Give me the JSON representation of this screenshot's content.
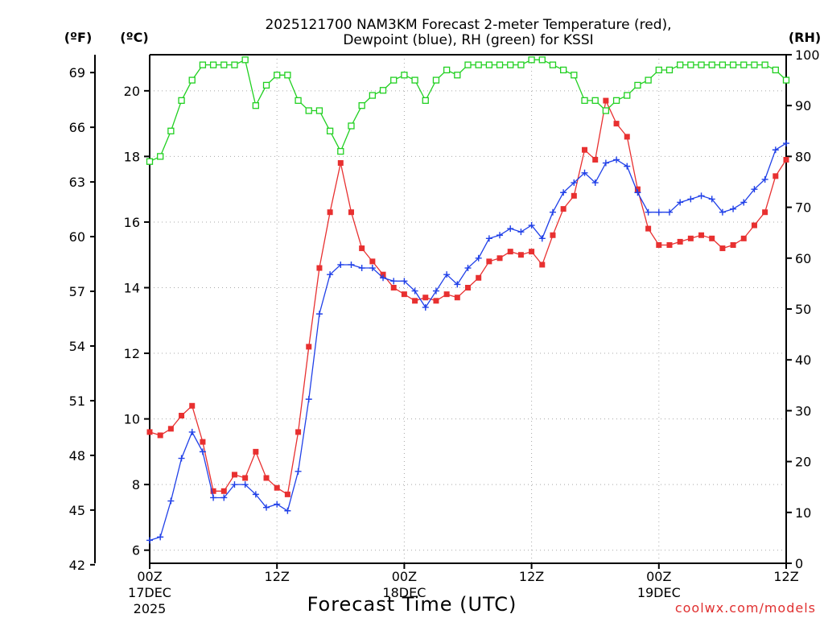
{
  "chart_data": {
    "type": "line",
    "title_line1": "2025121700 NAM3KM Forecast 2-meter Temperature (red),",
    "title_line2": "Dewpoint (blue), RH (green) for KSSI",
    "xlabel": "Forecast Time (UTC)",
    "left_axis_f_label": "(ºF)",
    "left_axis_c_label": "(ºC)",
    "right_axis_label": "(RH)",
    "credit": "coolwx.com/models",
    "x_range_hours": [
      0,
      60
    ],
    "y_celsius_range": [
      5.6,
      21.1
    ],
    "y_rh_range": [
      0,
      100
    ],
    "x_ticks": [
      {
        "hour": 0,
        "label": "00Z",
        "sub1": "17DEC",
        "sub2": "2025"
      },
      {
        "hour": 12,
        "label": "12Z",
        "sub1": "",
        "sub2": ""
      },
      {
        "hour": 24,
        "label": "00Z",
        "sub1": "18DEC",
        "sub2": ""
      },
      {
        "hour": 36,
        "label": "12Z",
        "sub1": "",
        "sub2": ""
      },
      {
        "hour": 48,
        "label": "00Z",
        "sub1": "19DEC",
        "sub2": ""
      },
      {
        "hour": 60,
        "label": "12Z",
        "sub1": "",
        "sub2": ""
      }
    ],
    "celsius_ticks": [
      "6",
      "8",
      "10",
      "12",
      "14",
      "16",
      "18",
      "20"
    ],
    "fahrenheit_ticks": [
      "42",
      "45",
      "48",
      "51",
      "54",
      "57",
      "60",
      "63",
      "66",
      "69"
    ],
    "rh_ticks": [
      "0",
      "10",
      "20",
      "30",
      "40",
      "50",
      "60",
      "70",
      "80",
      "90",
      "100"
    ],
    "hours": [
      0,
      1,
      2,
      3,
      4,
      5,
      6,
      7,
      8,
      9,
      10,
      11,
      12,
      13,
      14,
      15,
      16,
      17,
      18,
      19,
      20,
      21,
      22,
      23,
      24,
      25,
      26,
      27,
      28,
      29,
      30,
      31,
      32,
      33,
      34,
      35,
      36,
      37,
      38,
      39,
      40,
      41,
      42,
      43,
      44,
      45,
      46,
      47,
      48,
      49,
      50,
      51,
      52,
      53,
      54,
      55,
      56,
      57,
      58,
      59,
      60
    ],
    "series": [
      {
        "name": "Temperature",
        "color": "#e83030",
        "marker": "square",
        "axis": "celsius",
        "values": [
          9.6,
          9.5,
          9.7,
          10.1,
          10.4,
          9.3,
          7.8,
          7.8,
          8.3,
          8.2,
          9.0,
          8.2,
          7.9,
          7.7,
          9.6,
          12.2,
          14.6,
          16.3,
          17.8,
          16.3,
          15.2,
          14.8,
          14.4,
          14.0,
          13.8,
          13.6,
          13.7,
          13.6,
          13.8,
          13.7,
          14.0,
          14.3,
          14.8,
          14.9,
          15.1,
          15.0,
          15.1,
          14.7,
          15.6,
          16.4,
          16.8,
          18.2,
          17.9,
          19.7,
          19.0,
          18.6,
          17.0,
          15.8,
          15.3,
          15.3,
          15.4,
          15.5,
          15.6,
          15.5,
          15.2,
          15.3,
          15.5,
          15.9,
          16.3,
          17.4,
          17.9
        ]
      },
      {
        "name": "Dewpoint",
        "color": "#2040e8",
        "marker": "plus",
        "axis": "celsius",
        "values": [
          6.3,
          6.4,
          7.5,
          8.8,
          9.6,
          9.0,
          7.6,
          7.6,
          8.0,
          8.0,
          7.7,
          7.3,
          7.4,
          7.2,
          8.4,
          10.6,
          13.2,
          14.4,
          14.7,
          14.7,
          14.6,
          14.6,
          14.3,
          14.2,
          14.2,
          13.9,
          13.4,
          13.9,
          14.4,
          14.1,
          14.6,
          14.9,
          15.5,
          15.6,
          15.8,
          15.7,
          15.9,
          15.5,
          16.3,
          16.9,
          17.2,
          17.5,
          17.2,
          17.8,
          17.9,
          17.7,
          16.9,
          16.3,
          16.3,
          16.3,
          16.6,
          16.7,
          16.8,
          16.7,
          16.3,
          16.4,
          16.6,
          17.0,
          17.3,
          18.2,
          18.4
        ]
      },
      {
        "name": "RH",
        "color": "#20d020",
        "marker": "open-square",
        "axis": "rh",
        "values": [
          79,
          80,
          85,
          91,
          95,
          98,
          98,
          98,
          98,
          99,
          90,
          94,
          96,
          96,
          91,
          89,
          89,
          85,
          81,
          86,
          90,
          92,
          93,
          95,
          96,
          95,
          91,
          95,
          97,
          96,
          98,
          98,
          98,
          98,
          98,
          98,
          99,
          99,
          98,
          97,
          96,
          91,
          91,
          89,
          91,
          92,
          94,
          95,
          97,
          97,
          98,
          98,
          98,
          98,
          98,
          98,
          98,
          98,
          98,
          97,
          95
        ]
      }
    ]
  }
}
